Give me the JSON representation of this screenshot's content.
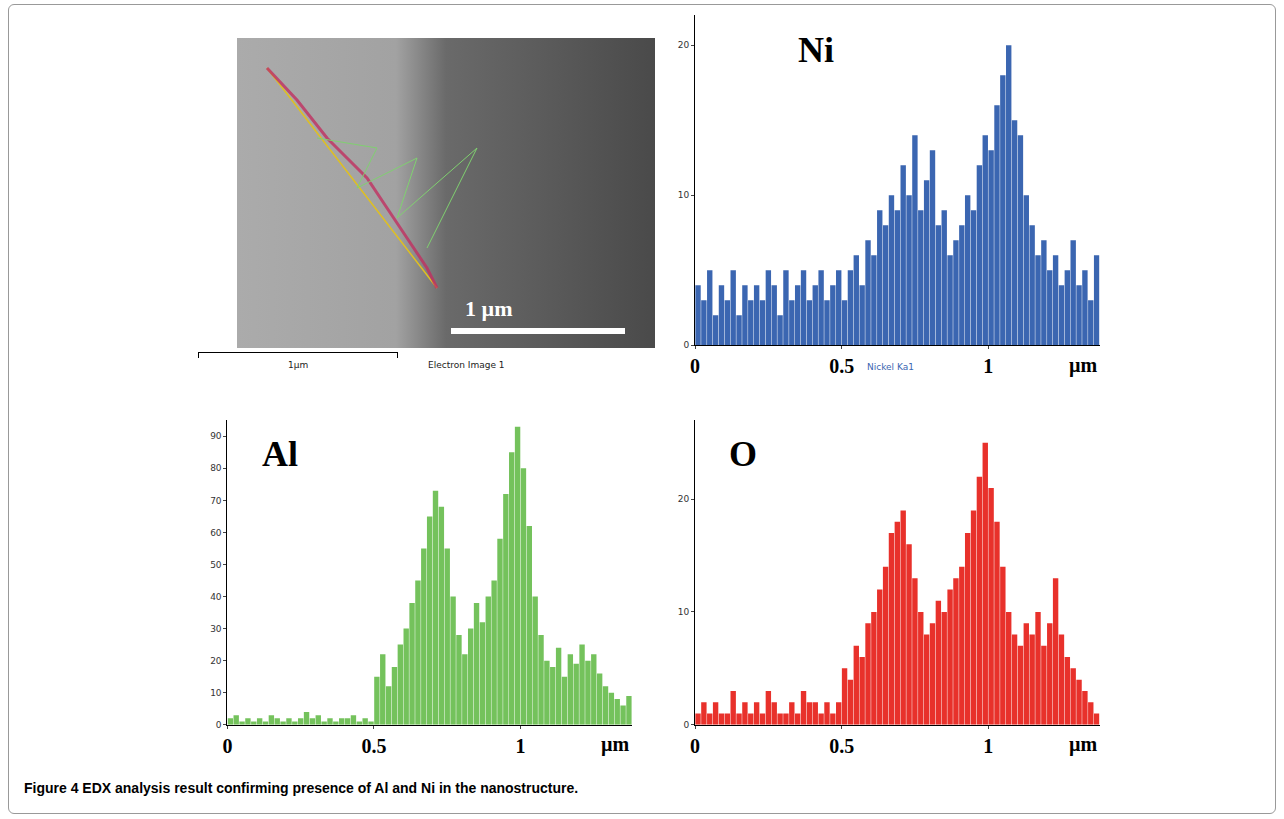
{
  "caption": "Figure 4 EDX analysis result confirming presence of Al and Ni in the nanostructure.",
  "electron_image": {
    "scale_label": "1 µm",
    "scale_bar_label": "1µm",
    "label": "Electron Image 1"
  },
  "chart_data": [
    {
      "type": "bar",
      "title": "Ni",
      "x_label": "µm",
      "annotations": [
        "Nickel Ka1"
      ],
      "color": "#3b66b1",
      "grid": false,
      "x": [
        0.01,
        0.03,
        0.05,
        0.07,
        0.09,
        0.11,
        0.13,
        0.15,
        0.17,
        0.19,
        0.21,
        0.23,
        0.25,
        0.27,
        0.29,
        0.31,
        0.33,
        0.35,
        0.37,
        0.39,
        0.41,
        0.43,
        0.45,
        0.47,
        0.49,
        0.51,
        0.53,
        0.55,
        0.57,
        0.59,
        0.61,
        0.63,
        0.65,
        0.67,
        0.69,
        0.71,
        0.73,
        0.75,
        0.77,
        0.79,
        0.81,
        0.83,
        0.85,
        0.87,
        0.89,
        0.91,
        0.93,
        0.95,
        0.97,
        0.99,
        1.01,
        1.03,
        1.05,
        1.07,
        1.09,
        1.11,
        1.13,
        1.15,
        1.17,
        1.19,
        1.21,
        1.23,
        1.25,
        1.27,
        1.29,
        1.31,
        1.33,
        1.35,
        1.37
      ],
      "values": [
        4,
        3,
        5,
        2,
        4,
        3,
        5,
        2,
        4,
        3,
        4,
        3,
        5,
        4,
        2,
        5,
        3,
        4,
        5,
        3,
        4,
        5,
        3,
        4,
        5,
        3,
        5,
        6,
        4,
        7,
        6,
        9,
        8,
        10,
        9,
        12,
        10,
        14,
        9,
        11,
        13,
        8,
        9,
        6,
        7,
        8,
        10,
        9,
        12,
        14,
        13,
        16,
        18,
        20,
        15,
        14,
        10,
        8,
        6,
        7,
        5,
        6,
        4,
        5,
        7,
        4,
        5,
        3,
        6
      ],
      "xlim": [
        0,
        1.38
      ],
      "xticks": [
        0,
        0.5,
        1
      ],
      "ylim": [
        0,
        22
      ],
      "yticks": [
        0,
        10,
        20
      ]
    },
    {
      "type": "bar",
      "title": "Al",
      "x_label": "µm",
      "color": "#74c25c",
      "grid": false,
      "x": [
        0.01,
        0.03,
        0.05,
        0.07,
        0.09,
        0.11,
        0.13,
        0.15,
        0.17,
        0.19,
        0.21,
        0.23,
        0.25,
        0.27,
        0.29,
        0.31,
        0.33,
        0.35,
        0.37,
        0.39,
        0.41,
        0.43,
        0.45,
        0.47,
        0.49,
        0.51,
        0.53,
        0.55,
        0.57,
        0.59,
        0.61,
        0.63,
        0.65,
        0.67,
        0.69,
        0.71,
        0.73,
        0.75,
        0.77,
        0.79,
        0.81,
        0.83,
        0.85,
        0.87,
        0.89,
        0.91,
        0.93,
        0.95,
        0.97,
        0.99,
        1.01,
        1.03,
        1.05,
        1.07,
        1.09,
        1.11,
        1.13,
        1.15,
        1.17,
        1.19,
        1.21,
        1.23,
        1.25,
        1.27,
        1.29,
        1.31,
        1.33,
        1.35,
        1.37
      ],
      "values": [
        2,
        3,
        1,
        2,
        1,
        2,
        1,
        3,
        2,
        1,
        2,
        1,
        2,
        4,
        2,
        3,
        1,
        2,
        1,
        2,
        2,
        3,
        1,
        2,
        1,
        15,
        22,
        12,
        18,
        25,
        30,
        38,
        45,
        55,
        65,
        73,
        68,
        55,
        40,
        28,
        22,
        30,
        38,
        32,
        40,
        45,
        58,
        72,
        85,
        93,
        80,
        62,
        40,
        28,
        20,
        18,
        24,
        15,
        22,
        19,
        25,
        20,
        22,
        16,
        12,
        10,
        8,
        6,
        9
      ],
      "xlim": [
        0,
        1.38
      ],
      "xticks": [
        0,
        0.5,
        1
      ],
      "ylim": [
        0,
        95
      ],
      "yticks": [
        0,
        10,
        20,
        30,
        40,
        50,
        60,
        70,
        80,
        90
      ]
    },
    {
      "type": "bar",
      "title": "O",
      "x_label": "µm",
      "color": "#e8312b",
      "grid": false,
      "x": [
        0.01,
        0.03,
        0.05,
        0.07,
        0.09,
        0.11,
        0.13,
        0.15,
        0.17,
        0.19,
        0.21,
        0.23,
        0.25,
        0.27,
        0.29,
        0.31,
        0.33,
        0.35,
        0.37,
        0.39,
        0.41,
        0.43,
        0.45,
        0.47,
        0.49,
        0.51,
        0.53,
        0.55,
        0.57,
        0.59,
        0.61,
        0.63,
        0.65,
        0.67,
        0.69,
        0.71,
        0.73,
        0.75,
        0.77,
        0.79,
        0.81,
        0.83,
        0.85,
        0.87,
        0.89,
        0.91,
        0.93,
        0.95,
        0.97,
        0.99,
        1.01,
        1.03,
        1.05,
        1.07,
        1.09,
        1.11,
        1.13,
        1.15,
        1.17,
        1.19,
        1.21,
        1.23,
        1.25,
        1.27,
        1.29,
        1.31,
        1.33,
        1.35,
        1.37
      ],
      "values": [
        1,
        2,
        1,
        2,
        1,
        1,
        3,
        1,
        2,
        1,
        2,
        1,
        3,
        2,
        1,
        1,
        2,
        1,
        3,
        2,
        2,
        1,
        2,
        1,
        2,
        5,
        4,
        7,
        6,
        9,
        10,
        12,
        14,
        17,
        18,
        19,
        16,
        13,
        10,
        8,
        9,
        11,
        10,
        12,
        13,
        14,
        17,
        19,
        22,
        25,
        21,
        18,
        14,
        10,
        8,
        7,
        9,
        8,
        10,
        7,
        9,
        13,
        8,
        6,
        5,
        4,
        3,
        2,
        1
      ],
      "xlim": [
        0,
        1.38
      ],
      "xticks": [
        0,
        0.5,
        1
      ],
      "ylim": [
        0,
        27
      ],
      "yticks": [
        0,
        10,
        20
      ]
    }
  ]
}
